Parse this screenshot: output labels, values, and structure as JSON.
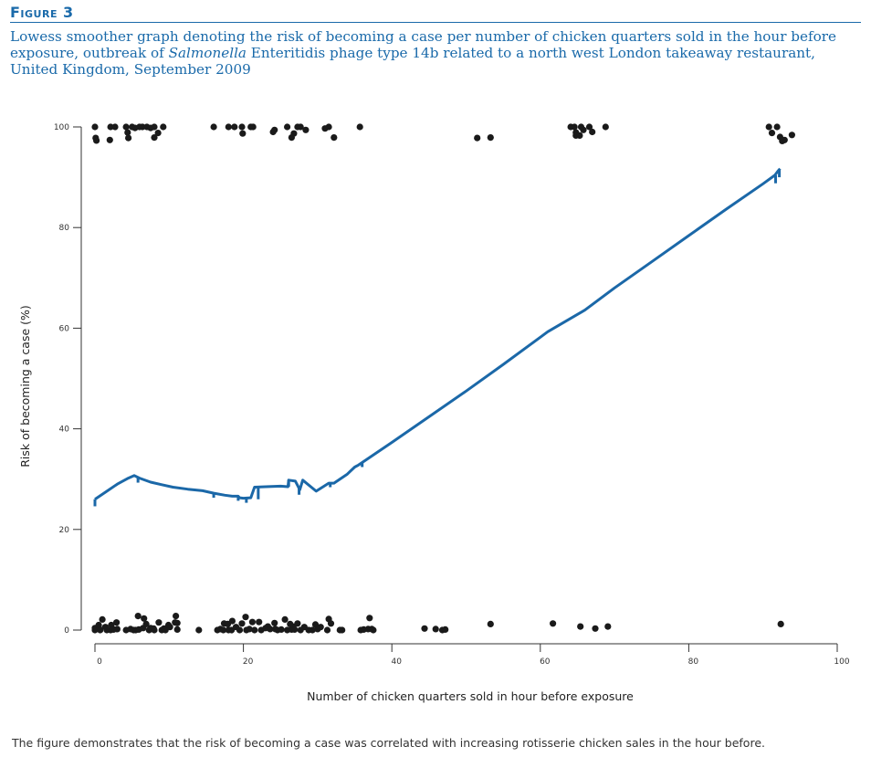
{
  "figure": {
    "label": "Figure 3",
    "caption_part1": "Lowess smoother graph denoting the risk of becoming a case per number of chicken quarters sold in the hour before exposure, outbreak of ",
    "caption_italic": "Salmonella",
    "caption_part2": " Enteritidis phage type 14b related to a north west London takeaway restaurant, United Kingdom, September 2009",
    "footnote": "The figure demonstrates that the risk of becoming a case was correlated with increasing rotisserie chicken sales in the hour before."
  },
  "colors": {
    "accent": "#1a6aaa",
    "line": "#1b68a8",
    "points": "#1a1a1a"
  },
  "chart_data": {
    "type": "scatter",
    "xlabel": "Number of chicken quarters sold in hour before exposure",
    "ylabel": "Risk of becoming a case (%)",
    "xlim": [
      0,
      100
    ],
    "ylim": [
      0,
      100
    ],
    "xticks": [
      0,
      20,
      40,
      60,
      80,
      100
    ],
    "yticks": [
      0,
      20,
      40,
      60,
      80,
      100
    ],
    "grid": false,
    "points_cases": [
      [
        0.0,
        100.0
      ],
      [
        0.1,
        97.8
      ],
      [
        0.2,
        97.3
      ],
      [
        2.0,
        97.4
      ],
      [
        2.1,
        100.0
      ],
      [
        2.7,
        100.0
      ],
      [
        4.2,
        100.0
      ],
      [
        4.4,
        98.9
      ],
      [
        4.5,
        97.8
      ],
      [
        5.0,
        100.0
      ],
      [
        5.4,
        99.8
      ],
      [
        6.0,
        100.0
      ],
      [
        6.4,
        100.0
      ],
      [
        7.0,
        100.0
      ],
      [
        7.5,
        99.8
      ],
      [
        8.0,
        100.0
      ],
      [
        8.0,
        97.9
      ],
      [
        8.5,
        98.8
      ],
      [
        9.2,
        100.0
      ],
      [
        16.0,
        100.0
      ],
      [
        18.0,
        100.0
      ],
      [
        18.8,
        100.0
      ],
      [
        19.8,
        100.0
      ],
      [
        19.9,
        98.7
      ],
      [
        21.0,
        100.0
      ],
      [
        21.3,
        100.0
      ],
      [
        24.0,
        99.0
      ],
      [
        24.2,
        99.4
      ],
      [
        25.9,
        100.0
      ],
      [
        26.5,
        97.9
      ],
      [
        26.8,
        98.7
      ],
      [
        27.3,
        100.0
      ],
      [
        27.7,
        100.0
      ],
      [
        28.4,
        99.4
      ],
      [
        31.0,
        99.7
      ],
      [
        31.5,
        100.0
      ],
      [
        32.2,
        97.9
      ],
      [
        35.7,
        100.0
      ],
      [
        51.5,
        97.8
      ],
      [
        53.3,
        97.9
      ],
      [
        64.1,
        100.0
      ],
      [
        64.6,
        100.0
      ],
      [
        64.8,
        98.9
      ],
      [
        64.8,
        98.3
      ],
      [
        65.3,
        98.3
      ],
      [
        65.5,
        100.0
      ],
      [
        65.8,
        99.4
      ],
      [
        66.6,
        100.0
      ],
      [
        67.0,
        99.0
      ],
      [
        68.8,
        100.0
      ],
      [
        90.8,
        100.0
      ],
      [
        91.2,
        98.8
      ],
      [
        91.9,
        100.0
      ],
      [
        92.3,
        98.0
      ],
      [
        92.6,
        97.2
      ],
      [
        92.9,
        97.4
      ],
      [
        93.9,
        98.4
      ]
    ],
    "points_non_cases": [
      [
        0.0,
        0.0
      ],
      [
        0.0,
        0.4
      ],
      [
        0.5,
        1.0
      ],
      [
        0.6,
        0.2
      ],
      [
        0.7,
        0.0
      ],
      [
        1.0,
        2.1
      ],
      [
        1.4,
        0.6
      ],
      [
        1.6,
        0.0
      ],
      [
        2.1,
        0.0
      ],
      [
        2.2,
        1.0
      ],
      [
        2.5,
        0.1
      ],
      [
        2.9,
        1.5
      ],
      [
        3.0,
        0.2
      ],
      [
        4.2,
        0.0
      ],
      [
        4.8,
        0.2
      ],
      [
        5.2,
        0.0
      ],
      [
        5.5,
        0.0
      ],
      [
        5.8,
        2.8
      ],
      [
        5.9,
        0.1
      ],
      [
        6.5,
        0.4
      ],
      [
        6.6,
        2.3
      ],
      [
        6.9,
        1.2
      ],
      [
        7.3,
        0.0
      ],
      [
        7.5,
        0.4
      ],
      [
        7.9,
        0.3
      ],
      [
        8.0,
        0.0
      ],
      [
        8.6,
        1.5
      ],
      [
        9.0,
        0.0
      ],
      [
        9.3,
        0.3
      ],
      [
        9.5,
        0.0
      ],
      [
        9.9,
        1.0
      ],
      [
        10.1,
        0.6
      ],
      [
        10.8,
        1.5
      ],
      [
        10.9,
        2.8
      ],
      [
        11.1,
        1.4
      ],
      [
        11.1,
        0.1
      ],
      [
        14.0,
        0.0
      ],
      [
        16.5,
        0.0
      ],
      [
        16.9,
        0.2
      ],
      [
        17.3,
        0.0
      ],
      [
        17.4,
        1.3
      ],
      [
        17.9,
        1.2
      ],
      [
        18.0,
        0.0
      ],
      [
        18.4,
        0.0
      ],
      [
        18.5,
        1.8
      ],
      [
        19.0,
        0.6
      ],
      [
        19.5,
        0.0
      ],
      [
        19.8,
        1.3
      ],
      [
        20.3,
        2.6
      ],
      [
        20.4,
        0.0
      ],
      [
        20.8,
        0.2
      ],
      [
        21.2,
        1.6
      ],
      [
        21.5,
        0.0
      ],
      [
        22.1,
        1.6
      ],
      [
        22.4,
        0.0
      ],
      [
        23.0,
        0.4
      ],
      [
        23.3,
        0.7
      ],
      [
        23.6,
        0.2
      ],
      [
        24.2,
        1.4
      ],
      [
        24.3,
        0.2
      ],
      [
        24.6,
        0.0
      ],
      [
        25.1,
        0.1
      ],
      [
        25.6,
        2.1
      ],
      [
        25.9,
        0.0
      ],
      [
        26.3,
        1.2
      ],
      [
        26.5,
        0.1
      ],
      [
        26.7,
        0.7
      ],
      [
        26.9,
        0.1
      ],
      [
        27.3,
        1.3
      ],
      [
        27.7,
        0.0
      ],
      [
        28.2,
        0.6
      ],
      [
        28.8,
        0.0
      ],
      [
        29.3,
        0.0
      ],
      [
        29.7,
        1.1
      ],
      [
        30.0,
        0.2
      ],
      [
        30.4,
        0.6
      ],
      [
        31.3,
        0.0
      ],
      [
        31.5,
        2.2
      ],
      [
        31.8,
        1.3
      ],
      [
        33.0,
        0.0
      ],
      [
        33.3,
        0.0
      ],
      [
        35.8,
        0.0
      ],
      [
        36.2,
        0.1
      ],
      [
        36.8,
        0.2
      ],
      [
        37.0,
        2.4
      ],
      [
        37.3,
        0.2
      ],
      [
        37.5,
        0.0
      ],
      [
        44.4,
        0.3
      ],
      [
        45.9,
        0.2
      ],
      [
        46.8,
        0.0
      ],
      [
        47.2,
        0.1
      ],
      [
        53.3,
        1.2
      ],
      [
        61.7,
        1.3
      ],
      [
        65.4,
        0.7
      ],
      [
        67.4,
        0.3
      ],
      [
        69.1,
        0.7
      ],
      [
        92.4,
        1.2
      ]
    ],
    "lowess_curve": [
      [
        0.0,
        26.0
      ],
      [
        1.5,
        27.5
      ],
      [
        3.0,
        29.0
      ],
      [
        4.5,
        30.2
      ],
      [
        5.3,
        30.7
      ],
      [
        6.0,
        30.2
      ],
      [
        7.5,
        29.4
      ],
      [
        9.0,
        28.9
      ],
      [
        10.5,
        28.4
      ],
      [
        12.5,
        28.0
      ],
      [
        14.5,
        27.7
      ],
      [
        16.0,
        27.2
      ],
      [
        17.5,
        26.8
      ],
      [
        18.5,
        26.6
      ],
      [
        19.3,
        26.6
      ],
      [
        19.5,
        26.3
      ],
      [
        20.0,
        26.2
      ],
      [
        21.0,
        26.3
      ],
      [
        21.5,
        28.4
      ],
      [
        23.0,
        28.5
      ],
      [
        25.0,
        28.6
      ],
      [
        26.0,
        28.5
      ],
      [
        26.1,
        29.8
      ],
      [
        27.0,
        29.6
      ],
      [
        27.6,
        27.9
      ],
      [
        28.0,
        29.8
      ],
      [
        29.8,
        27.6
      ],
      [
        31.5,
        29.2
      ],
      [
        32.2,
        29.2
      ],
      [
        34.0,
        31.0
      ],
      [
        35.0,
        32.4
      ],
      [
        35.5,
        32.8
      ],
      [
        36.0,
        33.3
      ],
      [
        40.0,
        37.3
      ],
      [
        45.0,
        42.4
      ],
      [
        50.0,
        47.5
      ],
      [
        55.0,
        52.8
      ],
      [
        60.0,
        58.2
      ],
      [
        61.0,
        59.3
      ],
      [
        66.0,
        63.6
      ],
      [
        70.0,
        68.0
      ],
      [
        75.0,
        73.2
      ],
      [
        80.0,
        78.4
      ],
      [
        85.0,
        83.6
      ],
      [
        90.0,
        88.7
      ],
      [
        91.6,
        90.4
      ],
      [
        92.0,
        91.2
      ],
      [
        92.3,
        91.7
      ]
    ],
    "lowess_tick_marks": [
      [
        0.0,
        26.0,
        -1.4
      ],
      [
        5.8,
        30.5,
        -1.2
      ],
      [
        16.0,
        27.2,
        -0.9
      ],
      [
        19.3,
        26.6,
        -0.9
      ],
      [
        20.4,
        26.2,
        -0.9
      ],
      [
        22.0,
        28.4,
        -2.4
      ],
      [
        26.1,
        29.8,
        -1.3
      ],
      [
        27.5,
        28.2,
        -1.3
      ],
      [
        31.7,
        29.3,
        -0.9
      ],
      [
        36.0,
        33.3,
        -0.9
      ],
      [
        91.7,
        90.4,
        -1.6
      ],
      [
        92.2,
        91.6,
        -1.6
      ]
    ]
  }
}
